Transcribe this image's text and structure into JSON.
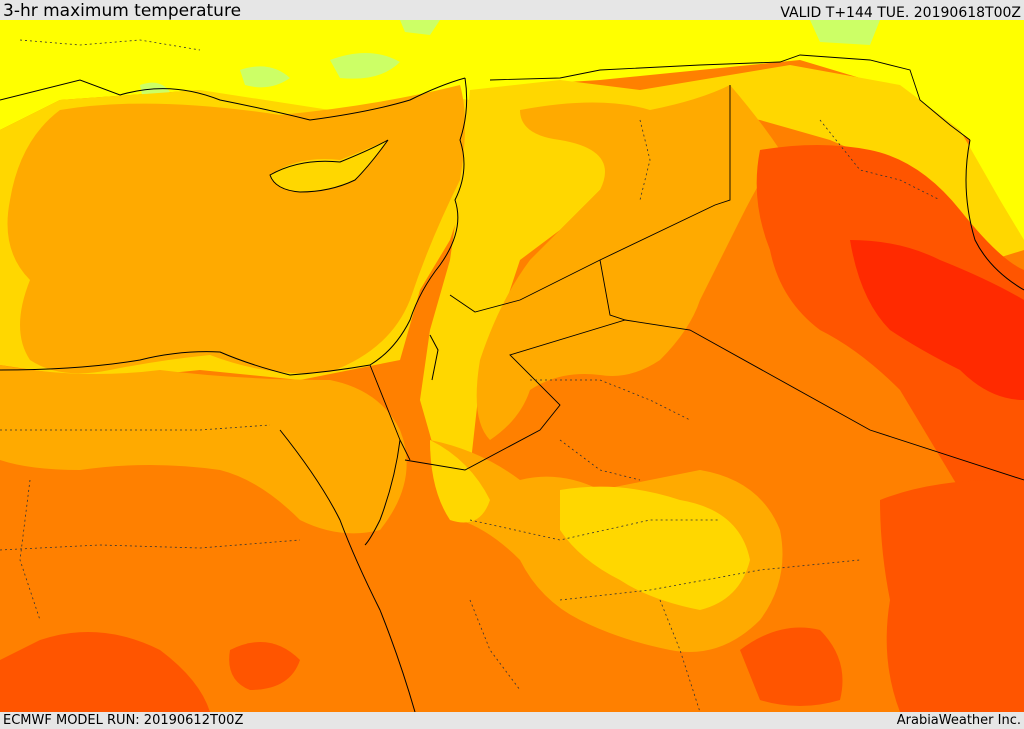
{
  "header": {
    "title": "3-hr maximum temperature",
    "valid": "VALID T+144 TUE. 20190618T00Z"
  },
  "footer": {
    "model_run": "ECMWF MODEL RUN: 20190612T00Z",
    "credit": "ArabiaWeather Inc."
  },
  "palette": {
    "light_green": "#ccff66",
    "yellow": "#ffff00",
    "gold": "#ffd700",
    "amber": "#ffaa00",
    "orange": "#ff8000",
    "dark_orange": "#ff5500",
    "red": "#ff2a00"
  }
}
